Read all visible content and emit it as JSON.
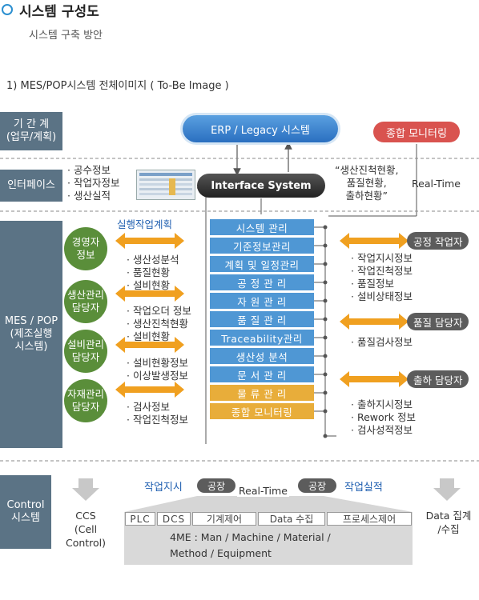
{
  "header": {
    "title": "시스템 구성도",
    "subtitle": "시스템 구축 방안",
    "section": "1)  MES/POP시스템 전체이미지   ( To-Be  Image )"
  },
  "rows": {
    "period_label": "기 간 계\n(업무/계획)",
    "interface_label": "인터페이스",
    "mes_label": "MES / POP\n(제조실행\n시스템)",
    "control_label": "Control\n시스템"
  },
  "top": {
    "erp": "ERP / Legacy 시스템",
    "monitor": "종합 모니터링",
    "interface_system": "Interface System",
    "quote": "“생산진척현황,\n품질현황,\n출하현황”",
    "realtime": "Real-Time"
  },
  "interface_items": [
    "공수정보",
    "작업자정보",
    "생산실적"
  ],
  "plan_label": "실행작업계획",
  "managers": [
    {
      "name": "경영자\n정보",
      "items": [
        "생산성분석",
        "품질현황",
        "설비현황"
      ]
    },
    {
      "name": "생산관리\n담당자",
      "items": [
        "작업오더 정보",
        "생산진척현황",
        "설비현황"
      ]
    },
    {
      "name": "설비관리\n담당자",
      "items": [
        "설비현황정보",
        "이상발생정보"
      ]
    },
    {
      "name": "자재관리\n담당자",
      "items": [
        "검사정보",
        "작업진척정보"
      ]
    }
  ],
  "modules": [
    {
      "label": "시스템 관리",
      "tone": "blue"
    },
    {
      "label": "기준정보관리",
      "tone": "blue"
    },
    {
      "label": "계획 및 일정관리",
      "tone": "blue"
    },
    {
      "label": "공 정  관 리",
      "tone": "blue"
    },
    {
      "label": "자 원  관 리",
      "tone": "blue"
    },
    {
      "label": "품 질  관 리",
      "tone": "blue"
    },
    {
      "label": "Traceability관리",
      "tone": "blue"
    },
    {
      "label": "생산성 분석",
      "tone": "blue"
    },
    {
      "label": "문 서  관 리",
      "tone": "blue"
    },
    {
      "label": "물 류  관 리",
      "tone": "gold"
    },
    {
      "label": "종합 모니터링",
      "tone": "gold"
    }
  ],
  "workers": [
    {
      "name": "공정 작업자",
      "items": [
        "작업지시정보",
        "작업진척정보",
        "품질정보",
        "설비상태정보"
      ]
    },
    {
      "name": "품질 담당자",
      "items": [
        "품질검사정보"
      ]
    },
    {
      "name": "출하 담당자",
      "items": [
        "출하지시정보",
        "Rework 정보",
        "검사성적정보"
      ]
    }
  ],
  "control": {
    "ccs": "CCS\n(Cell Control)",
    "work_order": "작업지시",
    "work_result": "작업실적",
    "factory": "공장",
    "realtime": "Real-Time",
    "cells": [
      "PLC",
      "DCS",
      "기계제어",
      "Data 수집",
      "프로세스제어"
    ],
    "fourme": "4ME : Man / Machine / Material /\nMethod / Equipment",
    "data_collect": "Data 집계\n/수집"
  },
  "colors": {
    "label_bg": "#5b7385",
    "module_blue": "#4f97d4",
    "module_gold": "#e8ad3a",
    "arrow_orange": "#f0a020",
    "circle_green": "#5a8e3a",
    "monitor_red": "#d9534f"
  }
}
